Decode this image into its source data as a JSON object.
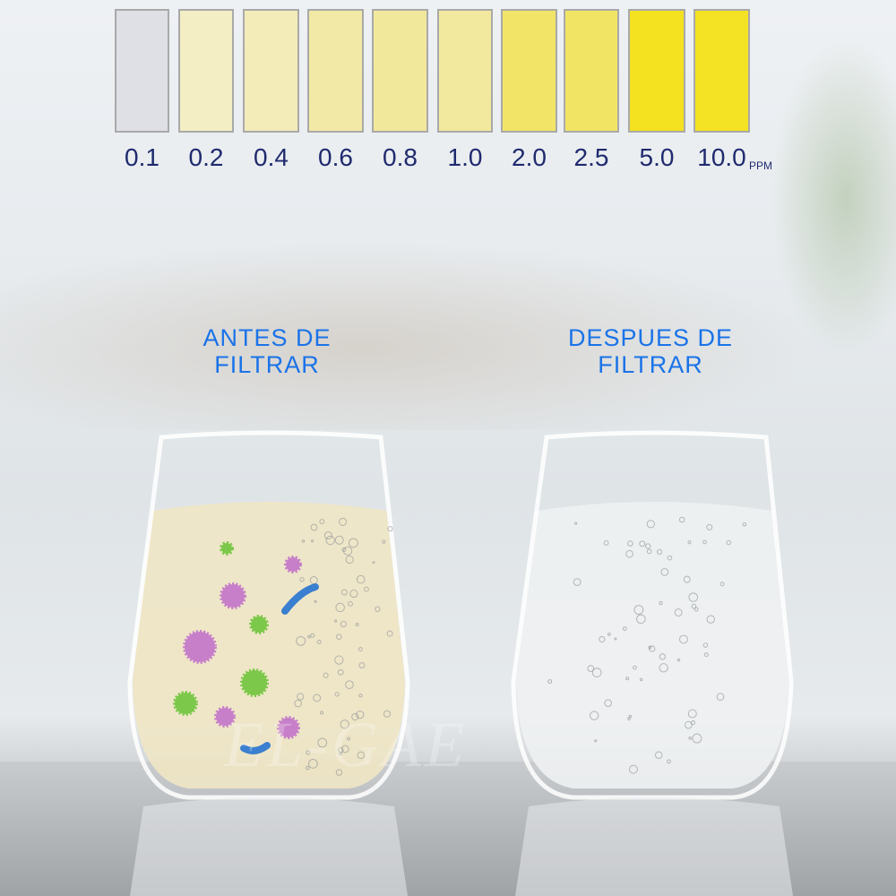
{
  "color_scale": {
    "unit": "PPM",
    "swatches": [
      {
        "label": "0.1",
        "color": "#dfdfe6"
      },
      {
        "label": "0.2",
        "color": "#f3eec3"
      },
      {
        "label": "0.4",
        "color": "#f3ecb9"
      },
      {
        "label": "0.6",
        "color": "#f2e9a6"
      },
      {
        "label": "0.8",
        "color": "#f2e89c"
      },
      {
        "label": "1.0",
        "color": "#f2e99f"
      },
      {
        "label": "2.0",
        "color": "#f1e466"
      },
      {
        "label": "2.5",
        "color": "#f1e464"
      },
      {
        "label": "5.0",
        "color": "#f4e120"
      },
      {
        "label": "10.0",
        "color": "#f4e224"
      }
    ]
  },
  "before": {
    "line1": "ANTES DE",
    "line2": "FILTRAR",
    "water_color": "#efe6c4"
  },
  "after": {
    "line1": "DESPUES DE",
    "line2": "FILTRAR",
    "water_color": "#eef1f2"
  },
  "title_color": "#1a73e8",
  "watermark": "EL-GAE"
}
